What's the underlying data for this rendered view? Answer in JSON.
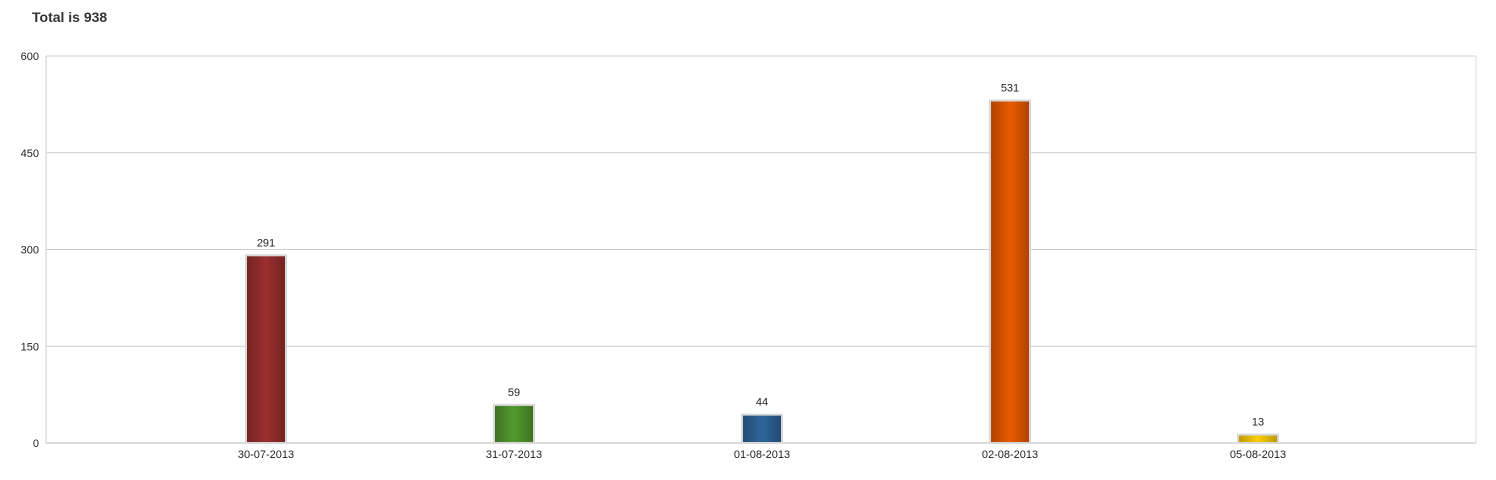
{
  "chart_data": {
    "type": "bar",
    "title": "Total is 938",
    "categories": [
      "30-07-2013",
      "31-07-2013",
      "01-08-2013",
      "02-08-2013",
      "05-08-2013"
    ],
    "values": [
      291,
      59,
      44,
      531,
      13
    ],
    "data_labels": [
      "291",
      "59",
      "44",
      "531",
      "13"
    ],
    "colors": [
      "#8b2a2a",
      "#4a8a2a",
      "#2a5a8a",
      "#d05000",
      "#e0b800"
    ],
    "y_ticks": [
      0,
      150,
      300,
      450,
      600
    ],
    "ylim": [
      0,
      600
    ],
    "xlabel": "",
    "ylabel": "",
    "grid": true,
    "legend": "none"
  }
}
